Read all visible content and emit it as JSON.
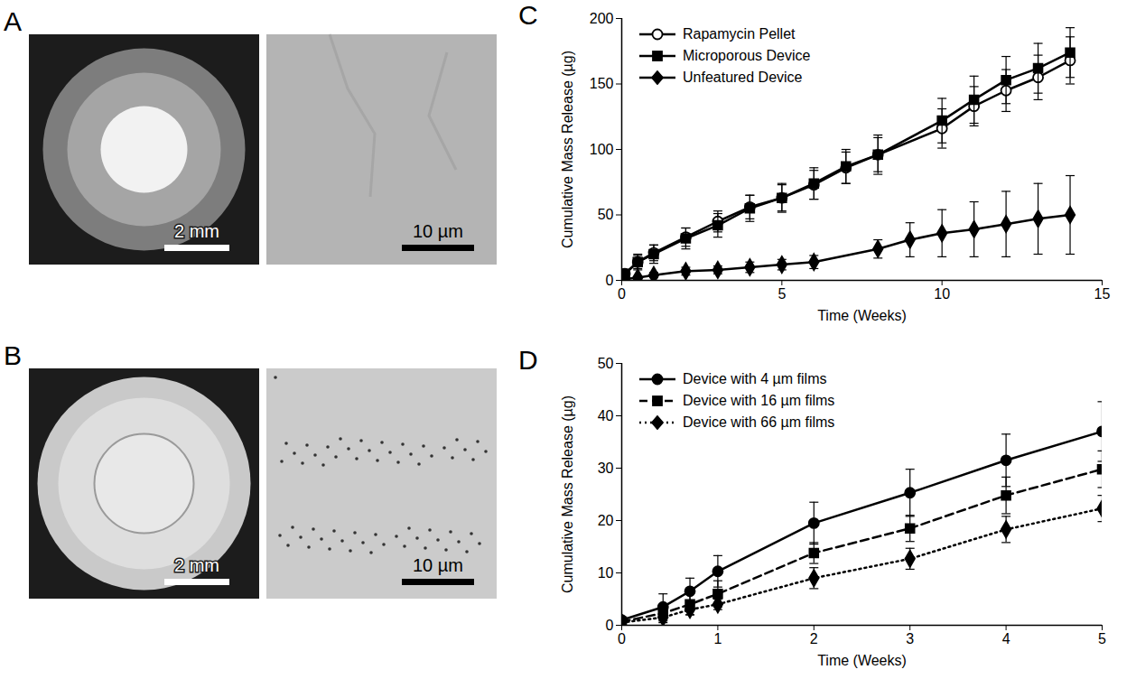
{
  "images": [
    {
      "panel": "A",
      "scale_bars": [
        "2 mm",
        "10 µm"
      ]
    },
    {
      "panel": "B",
      "scale_bars": [
        "2 mm",
        "10 µm"
      ]
    }
  ],
  "chart_data": [
    {
      "type": "line",
      "panel": "C",
      "x_label": "Time (Weeks)",
      "y_label": "Cumulative Mass Release (µg)",
      "xlim": [
        0,
        15
      ],
      "xticks": [
        0,
        5,
        10,
        15
      ],
      "ylim": [
        0,
        200
      ],
      "yticks": [
        0,
        50,
        100,
        150,
        200
      ],
      "grid": false,
      "legend": "top-left",
      "series": [
        {
          "name": "Rapamycin Pellet",
          "color": "#000000",
          "marker": "open circle",
          "line_style": "solid",
          "x": [
            0.1,
            0.5,
            1,
            2,
            3,
            4,
            5,
            6,
            7,
            8,
            10,
            11,
            12,
            13,
            14
          ],
          "values": [
            5,
            14,
            21,
            33,
            45,
            56,
            63,
            73,
            86,
            96,
            116,
            133,
            145,
            155,
            168
          ],
          "errors": [
            3,
            5,
            6,
            7,
            8,
            9,
            10,
            11,
            12,
            13,
            15,
            15,
            16,
            17,
            18
          ]
        },
        {
          "name": "Microporous Device",
          "color": "#000000",
          "marker": "square",
          "line_style": "solid",
          "x": [
            0.1,
            0.5,
            1,
            2,
            3,
            4,
            5,
            6,
            7,
            8,
            10,
            11,
            12,
            13,
            14
          ],
          "values": [
            5,
            14,
            20,
            32,
            42,
            55,
            63,
            74,
            87,
            96,
            122,
            138,
            153,
            162,
            174
          ],
          "errors": [
            3,
            6,
            7,
            8,
            9,
            10,
            11,
            12,
            13,
            15,
            17,
            18,
            18,
            19,
            19
          ]
        },
        {
          "name": "Unfeatured Device",
          "color": "#000000",
          "marker": "diamond",
          "line_style": "solid",
          "x": [
            0.1,
            0.5,
            1,
            2,
            3,
            4,
            5,
            6,
            8,
            9,
            10,
            11,
            12,
            13,
            14
          ],
          "values": [
            1,
            2,
            4,
            7,
            8,
            10,
            12,
            14,
            24,
            31,
            36,
            39,
            43,
            47,
            50
          ],
          "errors": [
            1,
            1,
            2,
            3,
            3,
            4,
            4,
            5,
            7,
            13,
            18,
            21,
            25,
            27,
            30
          ]
        }
      ]
    },
    {
      "type": "line",
      "panel": "D",
      "x_label": "Time (Weeks)",
      "y_label": "Cumulative Mass Release (µg)",
      "xlim": [
        0,
        5
      ],
      "xticks": [
        0,
        1,
        2,
        3,
        4,
        5
      ],
      "ylim": [
        0,
        50
      ],
      "yticks": [
        0,
        10,
        20,
        30,
        40,
        50
      ],
      "grid": false,
      "legend": "top-left",
      "series": [
        {
          "name": "Device with 4 µm films",
          "color": "#000000",
          "marker": "circle",
          "line_style": "solid",
          "x": [
            0,
            0.43,
            0.71,
            1,
            2,
            3,
            4,
            5
          ],
          "values": [
            1,
            3.5,
            6.5,
            10.3,
            19.5,
            25.3,
            31.5,
            37
          ],
          "errors": [
            0.5,
            2.5,
            2.5,
            3,
            4,
            4.5,
            5,
            5.7
          ]
        },
        {
          "name": "Device with 16 µm films",
          "color": "#000000",
          "marker": "square",
          "line_style": "dashed",
          "x": [
            0,
            0.43,
            0.71,
            1,
            2,
            3,
            4,
            5
          ],
          "values": [
            0.7,
            2.3,
            4,
            6,
            13.8,
            18.5,
            24.8,
            29.8
          ],
          "errors": [
            0.5,
            1.5,
            2,
            2.5,
            2,
            2.5,
            3.5,
            3.5
          ]
        },
        {
          "name": "Device with 66 µm films",
          "color": "#000000",
          "marker": "diamond",
          "line_style": "dotted",
          "x": [
            0,
            0.43,
            0.71,
            1,
            2,
            3,
            4,
            5
          ],
          "values": [
            0.5,
            1.5,
            3,
            4,
            9,
            12.7,
            18.3,
            22.3
          ],
          "errors": [
            0.3,
            1,
            1,
            1,
            2,
            2,
            2.5,
            2.5
          ]
        }
      ]
    }
  ]
}
